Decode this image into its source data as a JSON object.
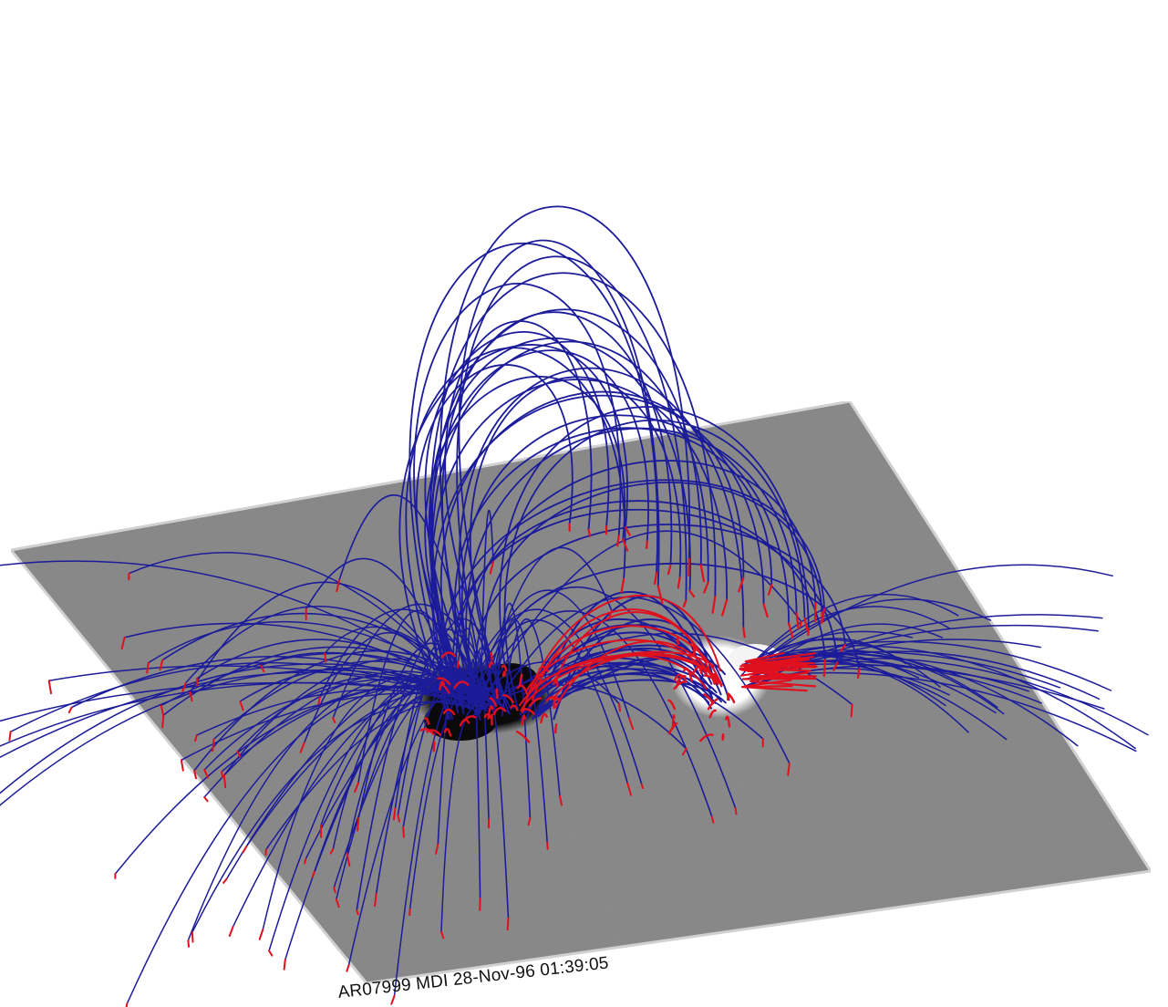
{
  "figure": {
    "caption": "AR07999 MDI 28-Nov-96 01:39:05",
    "colors": {
      "background": "#ffffff",
      "magnetogram_gray": "#8f8f8f",
      "negative_polarity": "#0a0a0a",
      "positive_polarity": "#ffffff",
      "field_line_blue": "#1c1c9a",
      "field_line_red": "#e0101e"
    }
  }
}
